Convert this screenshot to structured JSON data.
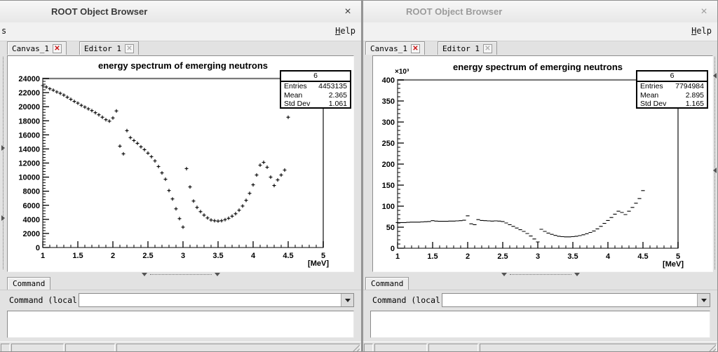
{
  "windows": [
    {
      "title": "ROOT Object Browser",
      "state": "active",
      "close_label": "×",
      "menubar": {
        "left_fragment": "s",
        "help": "Help"
      },
      "tabs": {
        "canvas_tab": "Canvas_1",
        "canvas_close": "✕",
        "editor_tab": "Editor 1",
        "editor_close": "✕"
      },
      "stats_box": {
        "name": "6",
        "entries_label": "Entries",
        "entries_value": "4453135",
        "mean_label": "Mean",
        "mean_value": "2.365",
        "stddev_label": "Std Dev",
        "stddev_value": "1.061"
      },
      "command_panel": {
        "tab": "Command",
        "prompt": "Command (local):",
        "input_value": ""
      }
    },
    {
      "title": "ROOT Object Browser",
      "state": "inactive",
      "close_label": "×",
      "menubar": {
        "help": "Help"
      },
      "tabs": {
        "canvas_tab": "Canvas_1",
        "canvas_close": "✕",
        "editor_tab": "Editor 1",
        "editor_close": "✕"
      },
      "stats_box": {
        "name": "6",
        "entries_label": "Entries",
        "entries_value": "7794984",
        "mean_label": "Mean",
        "mean_value": "2.895",
        "stddev_label": "Std Dev",
        "stddev_value": "1.165"
      },
      "command_panel": {
        "tab": "Command",
        "prompt": "Command (local):",
        "input_value": ""
      }
    }
  ],
  "chart_data": [
    {
      "type": "scatter",
      "marker": "plus",
      "title": "energy spectrum of emerging neutrons",
      "xlabel": "[MeV]",
      "ylabel": "",
      "xlim": [
        1,
        5
      ],
      "ylim": [
        0,
        24000
      ],
      "grid": false,
      "x_major_step": 0.5,
      "x_minor_step": 0.1,
      "y_major_step": 2000,
      "y_minor_step": 400,
      "x_tick_labels": [
        "1",
        "1.5",
        "2",
        "2.5",
        "3",
        "3.5",
        "4",
        "4.5",
        "5"
      ],
      "y_tick_labels": [
        "0",
        "2000",
        "4000",
        "6000",
        "8000",
        "10000",
        "12000",
        "14000",
        "16000",
        "18000",
        "20000",
        "22000",
        "24000"
      ],
      "x_start": 1.0,
      "x_step": 0.05,
      "values": [
        23000,
        22800,
        22550,
        22350,
        22100,
        21900,
        21650,
        21350,
        21050,
        20750,
        20500,
        20200,
        19950,
        19700,
        19450,
        19150,
        18850,
        18500,
        18150,
        17950,
        18400,
        19400,
        14400,
        13300,
        16600,
        15600,
        15200,
        14800,
        14300,
        13900,
        13400,
        12900,
        12300,
        11500,
        10600,
        9700,
        8100,
        6900,
        5500,
        4100,
        2900,
        11200,
        8600,
        6600,
        5700,
        5100,
        4600,
        4200,
        3900,
        3800,
        3750,
        3800,
        3950,
        4150,
        4450,
        4800,
        5300,
        5900,
        6700,
        7700,
        8900,
        10300,
        11700,
        12100,
        11400,
        10000,
        8800,
        9600,
        10300,
        11000,
        18500
      ]
    },
    {
      "type": "scatter",
      "marker": "hdash",
      "title": "energy spectrum of emerging neutrons",
      "xlabel": "[MeV]",
      "ylabel": "",
      "y_axis_exponent": "×10³",
      "y_unit_multiplier": 1000,
      "xlim": [
        1,
        5
      ],
      "ylim": [
        0,
        400
      ],
      "grid": false,
      "x_major_step": 0.5,
      "x_minor_step": 0.1,
      "y_major_step": 50,
      "y_minor_step": 10,
      "x_tick_labels": [
        "1",
        "1.5",
        "2",
        "2.5",
        "3",
        "3.5",
        "4",
        "4.5",
        "5"
      ],
      "y_tick_labels": [
        "0",
        "50",
        "100",
        "150",
        "200",
        "250",
        "300",
        "350",
        "400"
      ],
      "x_start": 1.0,
      "x_step": 0.05,
      "values": [
        61,
        61,
        61,
        61.5,
        62,
        62,
        62,
        62.5,
        63,
        63.5,
        65.5,
        64.5,
        64,
        64,
        64,
        64.5,
        64.5,
        65,
        65.5,
        66.5,
        77,
        58,
        56,
        68,
        66,
        65.5,
        65,
        64.5,
        65,
        64.5,
        63.5,
        60,
        56,
        52,
        48,
        44,
        40,
        35,
        29,
        22,
        15,
        45,
        40,
        36,
        33,
        30.5,
        28.5,
        27.5,
        27,
        27,
        27.5,
        28.5,
        30,
        32,
        34.5,
        37.5,
        41,
        46,
        52,
        59,
        66,
        73,
        81,
        88,
        85,
        80,
        88,
        97,
        107,
        118,
        137
      ]
    }
  ]
}
